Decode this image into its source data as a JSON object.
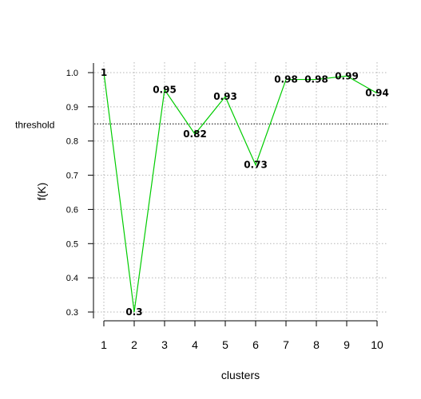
{
  "chart_data": {
    "type": "line",
    "title": "",
    "xlabel": "clusters",
    "ylabel": "f(K)",
    "x": [
      1,
      2,
      3,
      4,
      5,
      6,
      7,
      8,
      9,
      10
    ],
    "series": [
      {
        "values": [
          1.0,
          0.3,
          0.95,
          0.82,
          0.93,
          0.73,
          0.98,
          0.98,
          0.99,
          0.94
        ],
        "labels": [
          "1",
          "0.3",
          "0.95",
          "0.82",
          "0.93",
          "0.73",
          "0.98",
          "0.98",
          "0.99",
          "0.94"
        ],
        "color": "#00cc00"
      }
    ],
    "xlim": [
      1,
      10
    ],
    "ylim": [
      0.3,
      1.0
    ],
    "xticks": [
      1,
      2,
      3,
      4,
      5,
      6,
      7,
      8,
      9,
      10
    ],
    "xtick_labels": [
      "1",
      "2",
      "3",
      "4",
      "5",
      "6",
      "7",
      "8",
      "9",
      "10"
    ],
    "yticks": [
      0.3,
      0.4,
      0.5,
      0.6,
      0.7,
      0.8,
      0.9,
      1.0
    ],
    "ytick_labels": [
      "0.3",
      "0.4",
      "0.5",
      "0.6",
      "0.7",
      "0.8",
      "0.9",
      "1.0"
    ],
    "grid": true,
    "grid_style": "dotted",
    "threshold": {
      "value": 0.85,
      "label": "threshold",
      "style": "dotted",
      "color": "#000000"
    }
  }
}
